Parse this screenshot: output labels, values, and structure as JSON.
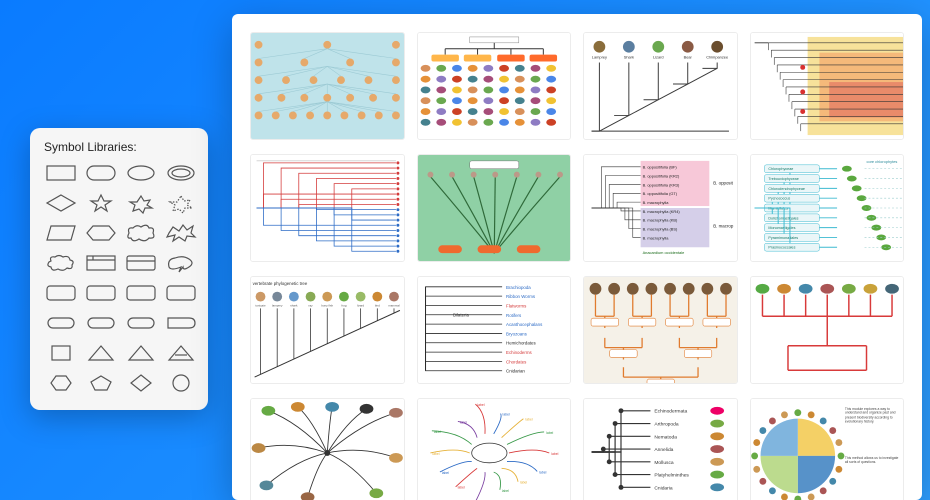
{
  "palette": {
    "title": "Symbol Libraries:",
    "rows": 8,
    "cols": 4,
    "stroke": "#555555",
    "bg": "#f6f6f6"
  },
  "gallery": {
    "bg": "#ffffff",
    "thumbs": [
      {
        "id": "animal-family-tree",
        "bg": "#bfe3ea",
        "accent": "#9ccad4",
        "style": "icon-tree",
        "levels": 5
      },
      {
        "id": "animal-classification-grid",
        "bg": "#ffffff",
        "title_bar": "#ffb64a",
        "pill": "#ff6a2b",
        "style": "class-grid",
        "rows": 6,
        "cols": 9
      },
      {
        "id": "mammal-cladogram",
        "bg": "#ffffff",
        "line": "#3a3a3a",
        "labels": [
          "Lamprey",
          "Shark",
          "Lizard",
          "Bear",
          "Chimpanzee"
        ],
        "style": "stair-clad"
      },
      {
        "id": "nested-cladogram-colored",
        "bg": "#f7f2b0",
        "box_colors": [
          "#f7e29a",
          "#f5b97a",
          "#e98b6a"
        ],
        "line": "#333333",
        "dot": "#d92f2f",
        "style": "nested-brackets",
        "leaf_count": 12
      },
      {
        "id": "red-blue-phylo",
        "bg": "#ffffff",
        "line_colors": [
          "#d43b3b",
          "#2e6cc6"
        ],
        "style": "square-phylo",
        "leaf_count": 18
      },
      {
        "id": "curved-green-phylo",
        "bg": "#8fd0a5",
        "line": "#2f6a3a",
        "pill": "#ef6a2f",
        "style": "curved-tree",
        "branches": 7
      },
      {
        "id": "pink-blue-bracket",
        "bg": "#ffffff",
        "block_a": "#f7c8d8",
        "block_b": "#d5cfe9",
        "labels_a": [
          "B. oppositifolia (BF)",
          "B. oppositifolia (KR2)",
          "B. oppositifolia (KR3)",
          "B. oppositifolia (GT)",
          "B. macrophylla"
        ],
        "labels_b": [
          "B. macrophylla (KR4)",
          "B. macrophylla (KB)",
          "B. macrophylla (BS)",
          "B. macrophylla"
        ],
        "footer": "Anacardium occidentale",
        "groups": [
          "B. opposit",
          "B. macrop"
        ],
        "line": "#333333",
        "style": "species-bracket"
      },
      {
        "id": "algae-leaf-tree",
        "bg": "#ffffff",
        "line": "#3dbad0",
        "leaf": "#5aa83e",
        "labels": [
          "Chlorophyceae",
          "Trebouxiophyceae",
          "Chlorodendrophyceae",
          "Pycnococcus",
          "Mamiellales",
          "Dolichomastigales",
          "Monomastigales",
          "Pyramimonadales",
          "Prasinococcales"
        ],
        "header": "core chlorophytes",
        "style": "leafy-clad"
      },
      {
        "id": "vertebrate-phylo",
        "bg": "#ffffff",
        "title": "vertebrate  phylogenetic tree",
        "line": "#333333",
        "style": "diag-with-icons",
        "top_labels": [
          "tunicate",
          "lamprey",
          "shark",
          "ray",
          "bony fish",
          "frog",
          "lizard",
          "bird",
          "mammal"
        ]
      },
      {
        "id": "right-angle-colored",
        "bg": "#ffffff",
        "line": "#2b2b2b",
        "leaf_labels": [
          "Brachiopoda",
          "Ribbon Worms",
          "Flatworms",
          "Rotifers",
          "Acanthocephalans",
          "Bryozoans",
          "Hemichordates",
          "Echinoderms",
          "Chordates",
          "Cnidarian"
        ],
        "leaf_colors": [
          "#2e6cc6",
          "#2e6cc6",
          "#d43b3b",
          "#2e6cc6",
          "#2e6cc6",
          "#2e6cc6",
          "#2b2b2b",
          "#d43b3b",
          "#d43b3b",
          "#2b2b2b"
        ],
        "inner": "Bilateria",
        "style": "labeled-right-angle"
      },
      {
        "id": "fossil-orange-tree",
        "bg": "#f5f1e8",
        "line": "#e07b2e",
        "node": "#7a5a3a",
        "style": "orange-down-tree",
        "leaf_count": 8
      },
      {
        "id": "bird-red-tree",
        "bg": "#ffffff",
        "line": "#d83a3a",
        "style": "bird-tree",
        "leaf_count": 7
      },
      {
        "id": "mammals-central-tree",
        "bg": "#ffffff",
        "line": "#333333",
        "style": "central-icons",
        "leaf_count": 10
      },
      {
        "id": "scribble-mindmap",
        "bg": "#ffffff",
        "colors": [
          "#d83a3a",
          "#2e6cc6",
          "#e6b23a",
          "#3a9a4a",
          "#7a3fa0"
        ],
        "style": "scribble",
        "branches": 14
      },
      {
        "id": "inverts-node-tree",
        "bg": "#ffffff",
        "line": "#333333",
        "node": "#333333",
        "labels": [
          "Echinodermata",
          "Arthropoda",
          "Nematoda",
          "Annelida",
          "Mollusca",
          "Platyhelminthes",
          "Cnidaria"
        ],
        "style": "node-tree"
      },
      {
        "id": "circular-life-tree",
        "bg": "#ffffff",
        "sectors": [
          "#f2c84b",
          "#3a7fbf",
          "#b0d57a",
          "#6aa8d8"
        ],
        "caption1": "This module explores a way to understand and organize past and present biodiversity according to evolutionary history.",
        "caption2": "This method allows us to investigate all sorts of questions.",
        "style": "fan"
      }
    ]
  }
}
